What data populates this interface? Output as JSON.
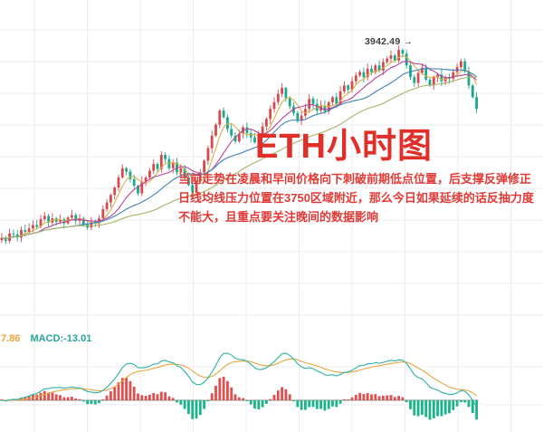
{
  "title": {
    "text": "ETH小时图",
    "color": "#df2f28"
  },
  "annotation": {
    "color": "#e13a36",
    "lines": [
      "当前走势在凌晨和早间价格向下刺破前期低点位置，后支撑反弹修正",
      "日线均线压力位置在3750区域附近，那么今日如果延续的话反抽力度",
      "不能大，且重点要关注晚间的数据影响"
    ]
  },
  "price_label": {
    "text": "3942.49",
    "arrow": "→"
  },
  "colors": {
    "background": "#ffffff",
    "grid": "#ededed",
    "candle_up": "#d9484c",
    "candle_down": "#18a98c",
    "peak_label_text": "#3c3c3c"
  },
  "chart_data": [
    {
      "type": "candlestick",
      "title": "ETH小时图",
      "timeframe": "1小时",
      "xlabel": "",
      "ylabel": "",
      "ylim": [
        3700,
        3960
      ],
      "grid": true,
      "peak_annotation": {
        "value": 3942.49,
        "label": "3942.49 →"
      },
      "up_color": "#d9484c",
      "down_color": "#18a98c",
      "ma_series": [
        {
          "name": "MA-fast",
          "period": 5,
          "color": "#d6b14c"
        },
        {
          "name": "MA-mid",
          "period": 10,
          "color": "#b8439a"
        },
        {
          "name": "MA-slow",
          "period": 20,
          "color": "#3f81b8"
        },
        {
          "name": "MA-slowest",
          "period": 40,
          "color": "#a9b263"
        }
      ],
      "closes": [
        3718,
        3714,
        3723,
        3722,
        3718,
        3727,
        3725,
        3729,
        3733,
        3731,
        3740,
        3744,
        3736,
        3741,
        3737,
        3740,
        3735,
        3742,
        3745,
        3738,
        3741,
        3734,
        3730,
        3737,
        3735,
        3741,
        3752,
        3760,
        3769,
        3778,
        3790,
        3801,
        3797,
        3788,
        3780,
        3771,
        3785,
        3790,
        3798,
        3806,
        3800,
        3817,
        3812,
        3801,
        3808,
        3796,
        3801,
        3790,
        3781,
        3772,
        3785,
        3796,
        3810,
        3825,
        3840,
        3853,
        3870,
        3862,
        3848,
        3840,
        3833,
        3842,
        3850,
        3843,
        3838,
        3832,
        3840,
        3851,
        3860,
        3872,
        3880,
        3890,
        3897,
        3885,
        3875,
        3867,
        3858,
        3864,
        3872,
        3884,
        3878,
        3870,
        3876,
        3869,
        3880,
        3886,
        3878,
        3893,
        3900,
        3895,
        3905,
        3912,
        3916,
        3910,
        3920,
        3916,
        3924,
        3918,
        3928,
        3932,
        3936,
        3930,
        3942.49,
        3938,
        3924,
        3910,
        3903,
        3915,
        3921,
        3907,
        3900,
        3910,
        3913,
        3905,
        3910,
        3908,
        3916,
        3922,
        3929,
        3917,
        3900,
        3886,
        3872
      ]
    },
    {
      "type": "bar",
      "name": "MACD",
      "legend_position": "top-left",
      "labels": {
        "value1": "7.86",
        "value1_color": "#f0a22e",
        "value2": "MACD:-13.01",
        "value2_color": "#27a79b"
      },
      "hist_up_color": "#e34d4d",
      "hist_down_color": "#17b589",
      "dif_color": "#29b2a2",
      "dea_color": "#e6a63f",
      "latest_macd": -13.01
    }
  ]
}
